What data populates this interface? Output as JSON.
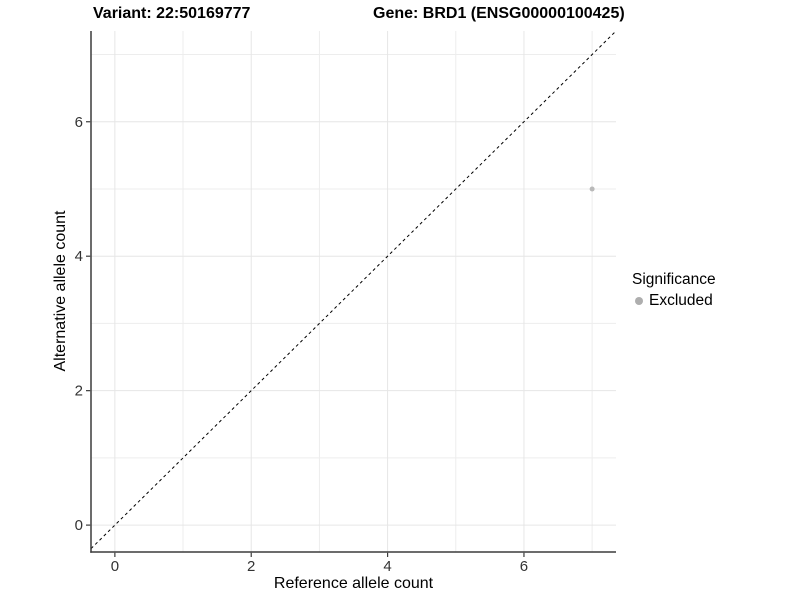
{
  "titles": {
    "variant": "Variant: 22:50169777",
    "gene": "Gene: BRD1 (ENSG00000100425)"
  },
  "colors": {
    "point": "#b9b9b9",
    "legend_dot": "#aeaeae",
    "grid_major": "#e6e6e6",
    "grid_minor": "#ededed",
    "axis_line": "#3c3c3c",
    "tick_label": "#333333",
    "identity_line": "#000000",
    "background": "#ffffff"
  },
  "chart_data": {
    "type": "scatter",
    "title": "Variant: 22:50169777 | Gene: BRD1 (ENSG00000100425)",
    "xlabel": "Reference allele count",
    "ylabel": "Alternative allele count",
    "xlim": [
      -0.35,
      7.35
    ],
    "ylim": [
      -0.4,
      7.35
    ],
    "x_ticks": [
      0,
      2,
      4,
      6
    ],
    "y_ticks": [
      0,
      2,
      4,
      6
    ],
    "x_minor_gridlines": [
      1,
      3,
      5,
      7
    ],
    "y_minor_gridlines": [
      1,
      3,
      5,
      7
    ],
    "grid": true,
    "points": [
      {
        "x": 7,
        "y": 5,
        "series": "Excluded"
      }
    ],
    "reference_line": {
      "kind": "identity y=x",
      "style": "dashed"
    },
    "legend": {
      "title": "Significance",
      "position": "right-center",
      "entries": [
        {
          "label": "Excluded",
          "color": "#b9b9b9"
        }
      ]
    }
  }
}
